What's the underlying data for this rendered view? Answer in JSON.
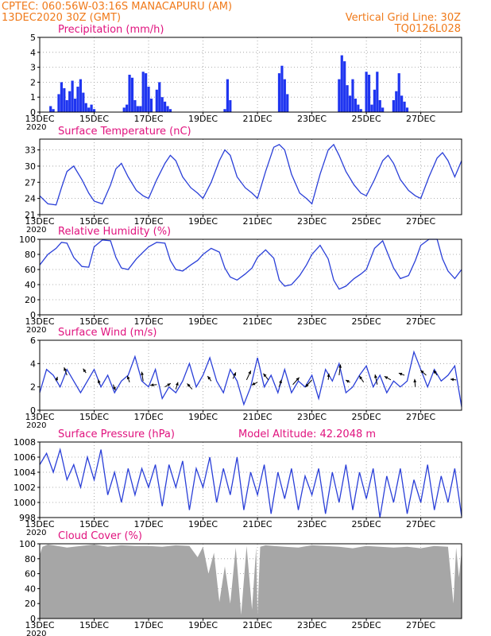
{
  "header": {
    "line1_left": "CPTEC:   060:56W-03:16S   MANACAPURU (AM)",
    "line2_left": "13DEC2020 30Z (GMT)",
    "line2_right": "Vertical Grid Line: 30Z",
    "line3_right": "TQ0126L028",
    "color": "#f07a1a"
  },
  "x_axis": {
    "range_days": [
      0,
      15.5
    ],
    "tick_days": [
      0,
      2,
      4,
      6,
      8,
      10,
      12,
      14
    ],
    "tick_labels": [
      "13DEC",
      "15DEC",
      "17DEC",
      "19DEC",
      "21DEC",
      "23DEC",
      "25DEC",
      "27DEC"
    ],
    "year_label": "2020"
  },
  "colors": {
    "line": "#2a3fd8",
    "bar": "#1f35f0",
    "cloud": "#a6a6a6",
    "title": "#e0127e",
    "frame": "#000000"
  },
  "chart_data": [
    {
      "id": "precip",
      "type": "bar",
      "title": "Precipitation (mm/h)",
      "ylim": [
        0,
        5
      ],
      "yticks": [
        0,
        1,
        2,
        3,
        4,
        5
      ],
      "x": [
        0.4,
        0.5,
        0.7,
        0.8,
        0.9,
        1.0,
        1.1,
        1.2,
        1.3,
        1.4,
        1.5,
        1.6,
        1.7,
        1.8,
        1.9,
        2.0,
        3.1,
        3.2,
        3.3,
        3.4,
        3.5,
        3.6,
        3.7,
        3.8,
        3.9,
        4.0,
        4.1,
        4.3,
        4.4,
        4.5,
        4.6,
        4.7,
        4.8,
        6.8,
        6.9,
        7.0,
        8.8,
        8.9,
        9.0,
        9.1,
        11.0,
        11.1,
        11.2,
        11.3,
        11.4,
        11.5,
        11.6,
        11.7,
        11.8,
        12.0,
        12.1,
        12.2,
        12.3,
        12.4,
        12.5,
        12.6,
        13.0,
        13.1,
        13.2,
        13.3,
        13.4,
        13.5
      ],
      "values": [
        0.4,
        0.2,
        1.2,
        2.0,
        1.6,
        0.8,
        1.4,
        2.1,
        0.9,
        1.7,
        2.2,
        1.3,
        0.6,
        0.3,
        0.5,
        0.2,
        0.3,
        0.5,
        2.5,
        2.3,
        0.8,
        0.4,
        0.4,
        2.7,
        2.6,
        1.7,
        0.9,
        1.5,
        2.0,
        1.0,
        0.7,
        0.4,
        0.2,
        0.2,
        2.2,
        0.8,
        2.6,
        3.1,
        2.2,
        1.2,
        2.2,
        3.8,
        3.4,
        1.8,
        1.1,
        2.2,
        0.9,
        0.5,
        0.2,
        2.7,
        2.5,
        0.5,
        1.5,
        2.7,
        0.8,
        0.3,
        0.8,
        1.4,
        2.6,
        1.1,
        0.7,
        0.3
      ]
    },
    {
      "id": "temp",
      "type": "line",
      "title": "Surface Temperature (nC)",
      "ylim": [
        21,
        35
      ],
      "yticks": [
        21,
        24,
        27,
        30,
        33
      ],
      "x": [
        0,
        0.3,
        0.6,
        0.8,
        1.0,
        1.25,
        1.55,
        1.8,
        2.0,
        2.3,
        2.6,
        2.8,
        3.0,
        3.25,
        3.55,
        3.8,
        4.0,
        4.3,
        4.6,
        4.8,
        5.0,
        5.25,
        5.55,
        5.8,
        6.0,
        6.3,
        6.6,
        6.8,
        7.0,
        7.25,
        7.55,
        7.8,
        8.0,
        8.3,
        8.6,
        8.8,
        9.0,
        9.25,
        9.55,
        9.8,
        10.0,
        10.3,
        10.6,
        10.8,
        11.0,
        11.25,
        11.55,
        11.8,
        12.0,
        12.3,
        12.6,
        12.8,
        13.0,
        13.25,
        13.55,
        13.8,
        14.0,
        14.3,
        14.6,
        14.8,
        15.0,
        15.25,
        15.5
      ],
      "values": [
        24.5,
        23.0,
        22.8,
        26.0,
        29.0,
        30.0,
        27.5,
        25.0,
        23.5,
        23.0,
        26.5,
        29.5,
        30.5,
        28.0,
        25.5,
        24.5,
        24.0,
        27.5,
        30.5,
        32.0,
        31.0,
        28.0,
        26.0,
        25.0,
        24.0,
        27.0,
        31.0,
        33.0,
        32.0,
        28.0,
        26.0,
        25.0,
        24.0,
        29.0,
        33.5,
        34.0,
        33.0,
        28.5,
        25.0,
        24.0,
        23.0,
        28.5,
        33.0,
        34.0,
        32.0,
        29.0,
        26.5,
        25.0,
        24.5,
        27.5,
        31.0,
        32.0,
        30.5,
        27.5,
        25.5,
        24.5,
        24.0,
        28.0,
        31.5,
        32.5,
        31.0,
        28.0,
        31.0
      ]
    },
    {
      "id": "rh",
      "type": "line",
      "title": "Relative Humidity (%)",
      "ylim": [
        0,
        100
      ],
      "yticks": [
        0,
        20,
        40,
        60,
        80,
        100
      ],
      "x": [
        0,
        0.3,
        0.6,
        0.8,
        1.0,
        1.25,
        1.55,
        1.8,
        2.0,
        2.3,
        2.6,
        2.8,
        3.0,
        3.25,
        3.55,
        3.8,
        4.0,
        4.3,
        4.6,
        4.8,
        5.0,
        5.25,
        5.55,
        5.8,
        6.0,
        6.3,
        6.6,
        6.8,
        7.0,
        7.25,
        7.55,
        7.8,
        8.0,
        8.3,
        8.6,
        8.8,
        9.0,
        9.25,
        9.55,
        9.8,
        10.0,
        10.3,
        10.6,
        10.8,
        11.0,
        11.25,
        11.55,
        11.8,
        12.0,
        12.3,
        12.6,
        12.8,
        13.0,
        13.25,
        13.55,
        13.8,
        14.0,
        14.3,
        14.6,
        14.8,
        15.0,
        15.25,
        15.5
      ],
      "values": [
        66,
        80,
        88,
        96,
        95,
        76,
        64,
        63,
        90,
        99,
        98,
        76,
        62,
        60,
        74,
        83,
        90,
        96,
        95,
        72,
        60,
        58,
        66,
        72,
        80,
        88,
        83,
        62,
        50,
        46,
        54,
        62,
        76,
        86,
        75,
        46,
        38,
        40,
        52,
        66,
        80,
        92,
        74,
        46,
        34,
        38,
        48,
        54,
        60,
        88,
        98,
        80,
        62,
        48,
        52,
        72,
        92,
        100,
        100,
        74,
        58,
        48,
        60
      ]
    },
    {
      "id": "wind",
      "type": "line",
      "title": "Surface Wind (m/s)",
      "ylim": [
        0,
        6
      ],
      "yticks": [
        0,
        2,
        4,
        6
      ],
      "x": [
        0,
        0.25,
        0.5,
        0.75,
        1.0,
        1.25,
        1.5,
        1.75,
        2.0,
        2.25,
        2.5,
        2.75,
        3.0,
        3.25,
        3.5,
        3.75,
        4.0,
        4.25,
        4.5,
        4.75,
        5.0,
        5.25,
        5.5,
        5.75,
        6.0,
        6.25,
        6.5,
        6.75,
        7.0,
        7.25,
        7.5,
        7.75,
        8.0,
        8.25,
        8.5,
        8.75,
        9.0,
        9.25,
        9.5,
        9.75,
        10.0,
        10.25,
        10.5,
        10.75,
        11.0,
        11.25,
        11.5,
        11.75,
        12.0,
        12.25,
        12.5,
        12.75,
        13.0,
        13.25,
        13.5,
        13.75,
        14.0,
        14.25,
        14.5,
        14.75,
        15.0,
        15.25,
        15.5
      ],
      "values": [
        1.5,
        3.5,
        3.0,
        2.0,
        3.5,
        2.5,
        1.5,
        2.5,
        3.5,
        2.0,
        3.0,
        1.5,
        2.5,
        3.0,
        4.6,
        2.5,
        2.0,
        3.5,
        1.0,
        2.0,
        1.5,
        2.5,
        4.0,
        2.0,
        3.0,
        4.5,
        2.5,
        1.5,
        3.5,
        2.5,
        0.5,
        2.0,
        4.5,
        2.0,
        3.0,
        1.5,
        3.5,
        1.5,
        2.5,
        2.0,
        3.0,
        1.0,
        3.5,
        2.5,
        4.0,
        1.5,
        2.0,
        3.0,
        3.8,
        2.0,
        3.0,
        1.5,
        2.5,
        2.0,
        2.5,
        5.0,
        3.5,
        2.0,
        3.5,
        2.5,
        3.0,
        3.8,
        0.3
      ],
      "arrows": [
        {
          "x": 0.6,
          "y": 2.5,
          "dx": 0.2,
          "dy": 0.6
        },
        {
          "x": 1.0,
          "y": 3.0,
          "dx": -0.4,
          "dy": 1.1
        },
        {
          "x": 1.7,
          "y": 3.2,
          "dx": -0.4,
          "dy": 0.6
        },
        {
          "x": 2.2,
          "y": 2.2,
          "dx": -0.2,
          "dy": 0.7
        },
        {
          "x": 2.7,
          "y": 2.2,
          "dx": 0.3,
          "dy": -0.8
        },
        {
          "x": 3.3,
          "y": 2.4,
          "dx": -0.3,
          "dy": 0.9
        },
        {
          "x": 3.8,
          "y": 2.5,
          "dx": -0.2,
          "dy": 1.3
        },
        {
          "x": 4.3,
          "y": 2.2,
          "dx": -0.9,
          "dy": -0.1
        },
        {
          "x": 4.6,
          "y": 2.0,
          "dx": 0.8,
          "dy": 0.5
        },
        {
          "x": 5.0,
          "y": 1.8,
          "dx": 0.3,
          "dy": 1.0
        },
        {
          "x": 5.6,
          "y": 1.8,
          "dx": -0.7,
          "dy": 0.8
        },
        {
          "x": 6.3,
          "y": 2.5,
          "dx": -0.5,
          "dy": 0.7
        },
        {
          "x": 7.1,
          "y": 2.7,
          "dx": 0.4,
          "dy": 0.9
        },
        {
          "x": 7.6,
          "y": 2.6,
          "dx": 0.6,
          "dy": 1.3
        },
        {
          "x": 8.0,
          "y": 2.4,
          "dx": -0.8,
          "dy": -0.4
        },
        {
          "x": 8.4,
          "y": 2.6,
          "dx": -0.7,
          "dy": 0.9
        },
        {
          "x": 8.8,
          "y": 2.0,
          "dx": 0.3,
          "dy": 1.0
        },
        {
          "x": 9.3,
          "y": 2.2,
          "dx": 0.9,
          "dy": 1.0
        },
        {
          "x": 10.0,
          "y": 2.6,
          "dx": -0.9,
          "dy": -1.0
        },
        {
          "x": 10.6,
          "y": 2.6,
          "dx": 0.1,
          "dy": 0.9
        },
        {
          "x": 11.0,
          "y": 3.0,
          "dx": 0.2,
          "dy": 1.5
        },
        {
          "x": 11.4,
          "y": 2.4,
          "dx": -0.6,
          "dy": 0.3
        },
        {
          "x": 11.9,
          "y": 2.4,
          "dx": -0.6,
          "dy": 0.9
        },
        {
          "x": 12.4,
          "y": 2.2,
          "dx": -0.3,
          "dy": 1.4
        },
        {
          "x": 12.9,
          "y": 2.6,
          "dx": -0.9,
          "dy": 0.5
        },
        {
          "x": 13.4,
          "y": 3.0,
          "dx": -0.8,
          "dy": 0.3
        },
        {
          "x": 13.8,
          "y": 2.0,
          "dx": -0.1,
          "dy": 1.1
        },
        {
          "x": 14.2,
          "y": 3.0,
          "dx": -0.8,
          "dy": 0.7
        },
        {
          "x": 14.6,
          "y": 3.0,
          "dx": -0.5,
          "dy": 0.7
        },
        {
          "x": 15.3,
          "y": 2.6,
          "dx": -0.8,
          "dy": 0.1
        }
      ]
    },
    {
      "id": "pressure",
      "type": "line",
      "title": "Surface Pressure (hPa)",
      "ylim": [
        998,
        1008
      ],
      "yticks": [
        998,
        1000,
        1002,
        1004,
        1006,
        1008
      ],
      "x": [
        0,
        0.25,
        0.5,
        0.75,
        1.0,
        1.25,
        1.5,
        1.75,
        2.0,
        2.25,
        2.5,
        2.75,
        3.0,
        3.25,
        3.5,
        3.75,
        4.0,
        4.25,
        4.5,
        4.75,
        5.0,
        5.25,
        5.5,
        5.75,
        6.0,
        6.25,
        6.5,
        6.75,
        7.0,
        7.25,
        7.5,
        7.75,
        8.0,
        8.25,
        8.5,
        8.75,
        9.0,
        9.25,
        9.5,
        9.75,
        10.0,
        10.25,
        10.5,
        10.75,
        11.0,
        11.25,
        11.5,
        11.75,
        12.0,
        12.25,
        12.5,
        12.75,
        13.0,
        13.25,
        13.5,
        13.75,
        14.0,
        14.25,
        14.5,
        14.75,
        15.0,
        15.25,
        15.5
      ],
      "values": [
        1005,
        1006.5,
        1004,
        1007,
        1003,
        1005,
        1002,
        1006,
        1003,
        1007,
        1001,
        1004,
        1000,
        1004.5,
        1001,
        1004.5,
        1002,
        1005,
        999.5,
        1005,
        1002,
        1005.5,
        999,
        1004.5,
        1002,
        1006,
        1000,
        1004.5,
        1001,
        1006,
        999,
        1004,
        1001,
        1005,
        998.5,
        1004,
        1000.5,
        1004.5,
        999,
        1003.5,
        1001,
        1004.5,
        998.5,
        1004,
        1000,
        1005,
        999,
        1004,
        1000.5,
        1004.5,
        998,
        1003.5,
        1000,
        1004.5,
        998.5,
        1003,
        1000,
        1005,
        999,
        1003.5,
        1000,
        1004.5,
        998.2
      ],
      "badge": "Model Altitude: 42.2048 m"
    },
    {
      "id": "cloud",
      "type": "area",
      "title": "Cloud Cover (%)",
      "ylim": [
        0,
        100
      ],
      "yticks": [
        0,
        20,
        40,
        60,
        80,
        100
      ],
      "x": [
        0,
        0.1,
        0.3,
        0.5,
        1.0,
        1.5,
        2.0,
        2.5,
        3.0,
        3.5,
        4.0,
        4.5,
        5.0,
        5.5,
        5.8,
        6.0,
        6.2,
        6.4,
        6.6,
        6.8,
        7.0,
        7.2,
        7.4,
        7.6,
        7.8,
        7.95,
        8.0,
        8.1,
        8.3,
        8.6,
        9.0,
        9.5,
        10.0,
        10.5,
        11.0,
        11.5,
        12.0,
        12.5,
        13.0,
        13.5,
        14.0,
        14.5,
        15.0,
        15.2,
        15.3,
        15.4,
        15.5
      ],
      "values": [
        85,
        96,
        99,
        98,
        95,
        97,
        99,
        96,
        98,
        97,
        97,
        96,
        98,
        97,
        82,
        96,
        60,
        88,
        22,
        70,
        20,
        95,
        5,
        97,
        12,
        95,
        5,
        96,
        98,
        97,
        96,
        95,
        98,
        97,
        96,
        94,
        97,
        96,
        95,
        96,
        94,
        97,
        96,
        20,
        95,
        55,
        90
      ]
    }
  ]
}
